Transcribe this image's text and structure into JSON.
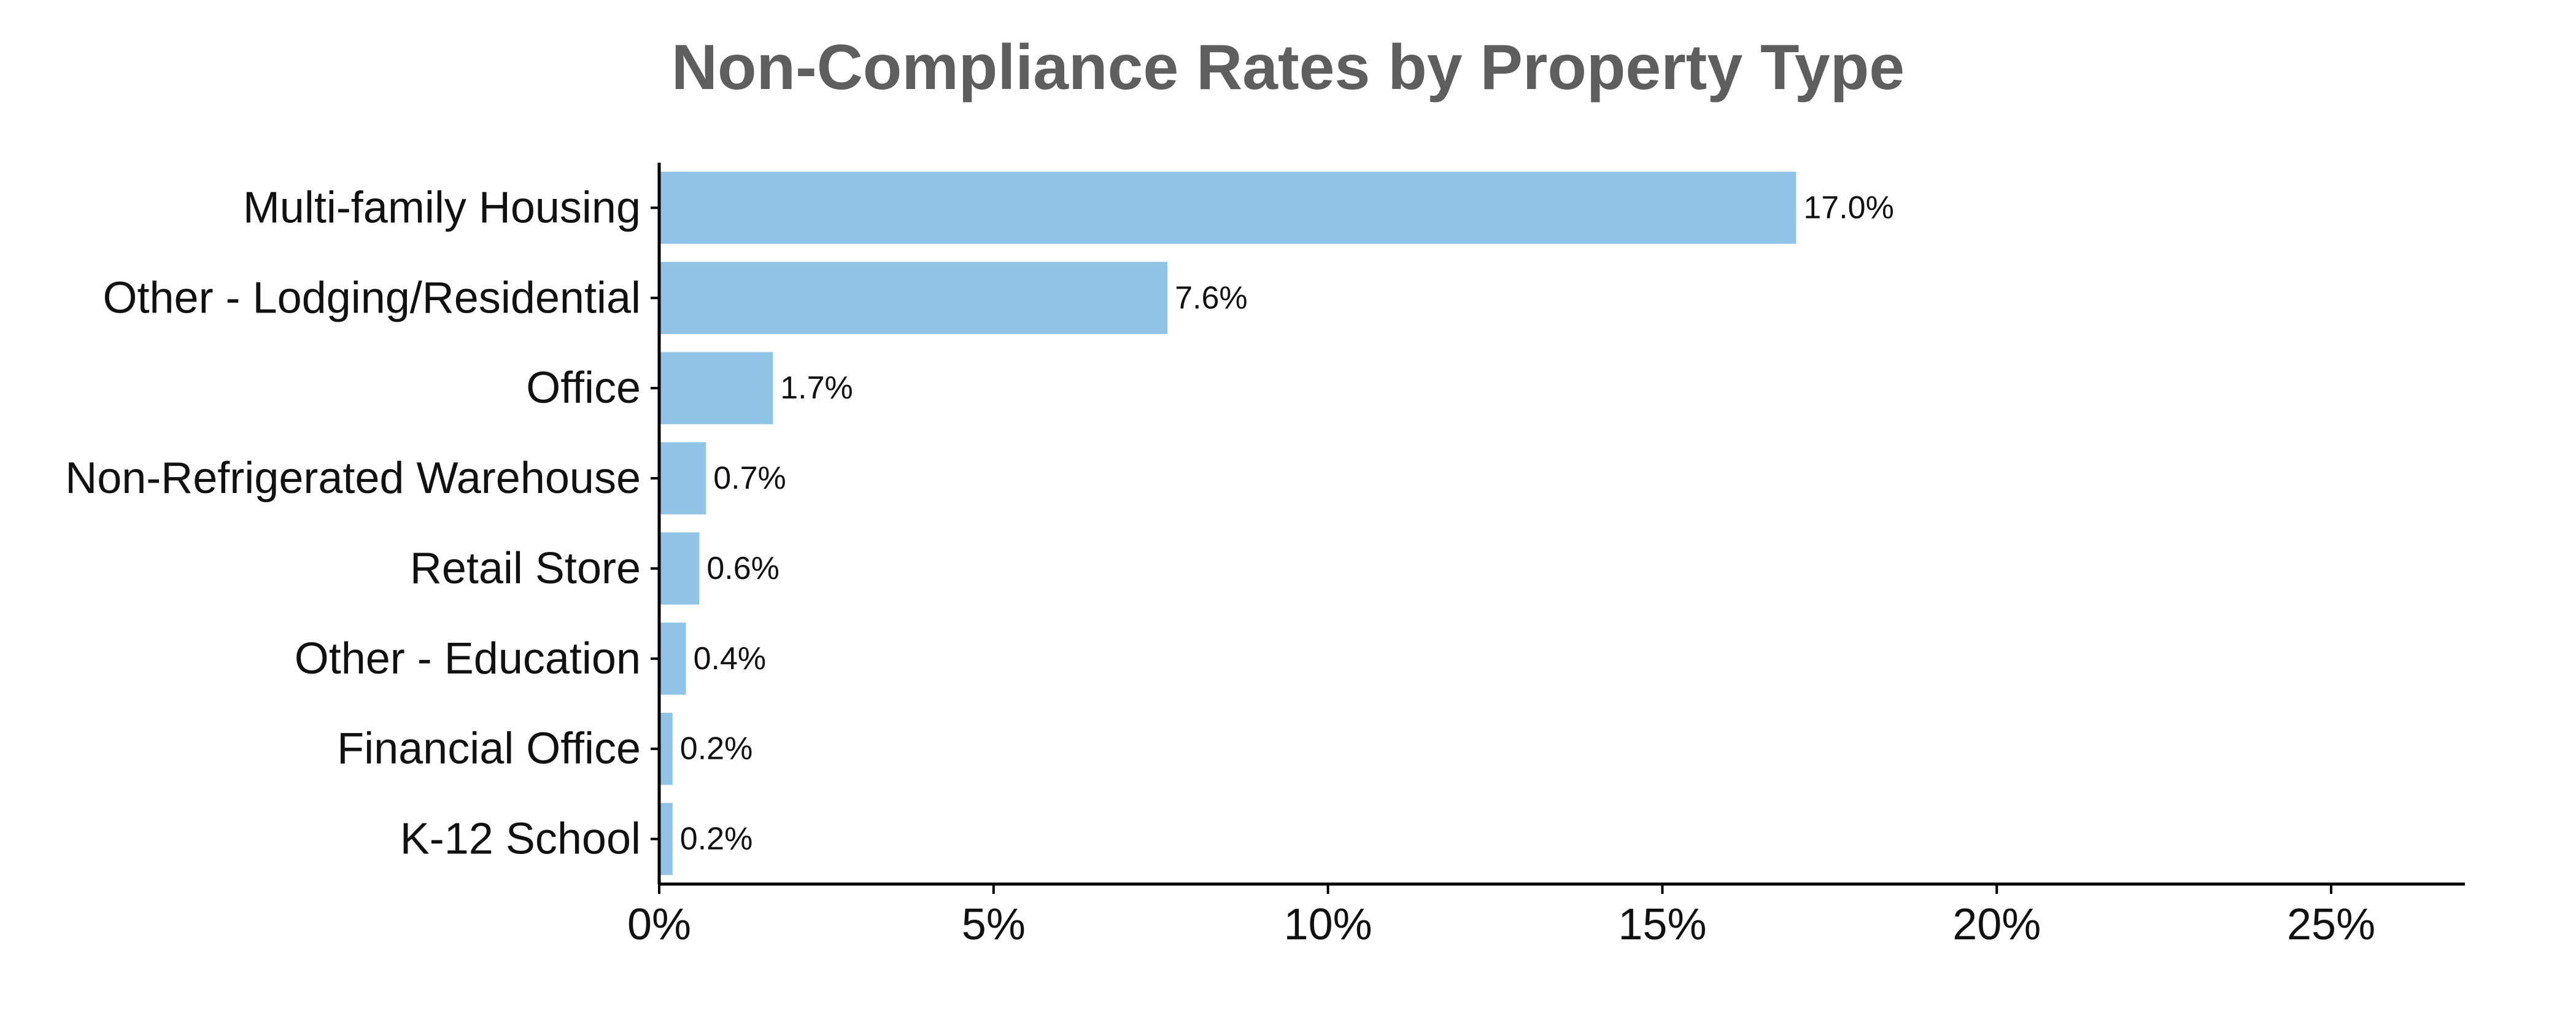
{
  "chart_data": {
    "type": "bar",
    "orientation": "horizontal",
    "title": "Non-Compliance Rates by Property Type",
    "xlabel": "",
    "ylabel": "",
    "categories": [
      "Multi-family Housing",
      "Other - Lodging/Residential",
      "Office",
      "Non-Refrigerated Warehouse",
      "Retail Store",
      "Other - Education",
      "Financial Office",
      "K-12 School"
    ],
    "values": [
      17.0,
      7.6,
      1.7,
      0.7,
      0.6,
      0.4,
      0.2,
      0.2
    ],
    "value_labels": [
      "17.0%",
      "7.6%",
      "1.7%",
      "0.7%",
      "0.6%",
      "0.4%",
      "0.2%",
      "0.2%"
    ],
    "xlim": [
      0,
      27
    ],
    "xticks": [
      0,
      5,
      10,
      15,
      20,
      25
    ],
    "xtick_labels": [
      "0%",
      "5%",
      "10%",
      "15%",
      "20%",
      "25%"
    ],
    "grid": false,
    "legend": "none",
    "bar_color": "#8fc4e6",
    "axis_color": "#000000",
    "title_color": "#5e5e5e"
  }
}
